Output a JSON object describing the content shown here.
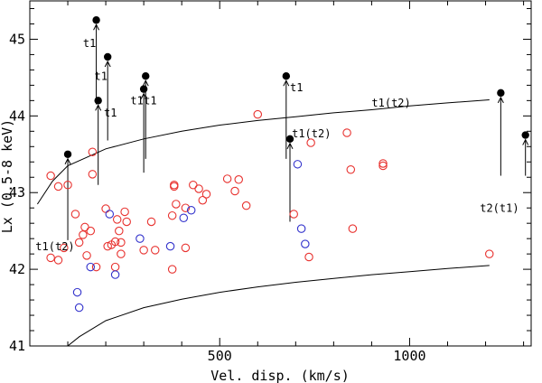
{
  "chart_data": {
    "type": "scatter",
    "title": "",
    "xlabel": "Vel. disp. (km/s)",
    "ylabel": "Lx (0.5-8 keV)",
    "xlim": [
      0,
      1320
    ],
    "ylim": [
      41,
      45.5
    ],
    "grid": false,
    "x_ticks": [
      500,
      1000
    ],
    "y_ticks": [
      41,
      42,
      43,
      44,
      45
    ],
    "colors": {
      "red": "#e8322f",
      "blue": "#3333cc",
      "black": "#000000"
    },
    "series": [
      {
        "name": "red-open-circles",
        "marker": "open-circle",
        "color": "#e8322f",
        "points": [
          [
            55,
            43.22
          ],
          [
            55,
            42.15
          ],
          [
            75,
            42.12
          ],
          [
            75,
            43.08
          ],
          [
            90,
            42.28
          ],
          [
            100,
            43.1
          ],
          [
            120,
            42.72
          ],
          [
            130,
            42.35
          ],
          [
            140,
            42.45
          ],
          [
            145,
            42.55
          ],
          [
            150,
            42.18
          ],
          [
            160,
            42.5
          ],
          [
            165,
            43.24
          ],
          [
            165,
            43.53
          ],
          [
            175,
            42.03
          ],
          [
            200,
            42.79
          ],
          [
            205,
            42.3
          ],
          [
            215,
            42.32
          ],
          [
            225,
            42.36
          ],
          [
            235,
            42.5
          ],
          [
            230,
            42.65
          ],
          [
            240,
            42.35
          ],
          [
            250,
            42.75
          ],
          [
            240,
            42.2
          ],
          [
            225,
            42.03
          ],
          [
            255,
            42.62
          ],
          [
            300,
            42.25
          ],
          [
            320,
            42.62
          ],
          [
            330,
            42.25
          ],
          [
            375,
            42.0
          ],
          [
            375,
            42.7
          ],
          [
            380,
            43.1
          ],
          [
            380,
            43.08
          ],
          [
            385,
            42.85
          ],
          [
            410,
            42.28
          ],
          [
            410,
            42.8
          ],
          [
            430,
            43.1
          ],
          [
            445,
            43.05
          ],
          [
            455,
            42.9
          ],
          [
            465,
            42.98
          ],
          [
            520,
            43.18
          ],
          [
            540,
            43.02
          ],
          [
            550,
            43.17
          ],
          [
            570,
            42.83
          ],
          [
            600,
            44.02
          ],
          [
            695,
            42.72
          ],
          [
            735,
            42.16
          ],
          [
            740,
            43.65
          ],
          [
            835,
            43.78
          ],
          [
            845,
            43.3
          ],
          [
            850,
            42.53
          ],
          [
            930,
            43.35
          ],
          [
            930,
            43.38
          ],
          [
            1210,
            42.2
          ]
        ]
      },
      {
        "name": "blue-open-circles",
        "marker": "open-circle",
        "color": "#3333cc",
        "points": [
          [
            125,
            41.7
          ],
          [
            130,
            41.5
          ],
          [
            160,
            42.03
          ],
          [
            210,
            42.72
          ],
          [
            225,
            41.93
          ],
          [
            290,
            42.4
          ],
          [
            370,
            42.3
          ],
          [
            405,
            42.67
          ],
          [
            425,
            42.77
          ],
          [
            705,
            43.37
          ],
          [
            715,
            42.53
          ],
          [
            725,
            42.33
          ]
        ]
      },
      {
        "name": "black-upper-limits",
        "marker": "filled-circle-with-arrow",
        "color": "#000000",
        "points": [
          {
            "x": 100,
            "y": 43.5,
            "label": "t1(t2)",
            "arrow_to": 42.38
          },
          {
            "x": 175,
            "y": 45.25,
            "label": "t1",
            "arrow_to": 44.15
          },
          {
            "x": 180,
            "y": 44.2,
            "label": "t1",
            "arrow_to": 43.1
          },
          {
            "x": 205,
            "y": 44.77,
            "label": "t1",
            "arrow_to": 43.68
          },
          {
            "x": 300,
            "y": 44.35,
            "label": "t1",
            "arrow_to": 43.26
          },
          {
            "x": 305,
            "y": 44.52,
            "label": "t1",
            "arrow_to": 43.44
          },
          {
            "x": 675,
            "y": 44.52,
            "label": "t1",
            "arrow_to": 43.44
          },
          {
            "x": 685,
            "y": 43.7,
            "label": "t1(t2)",
            "arrow_to": 42.62
          },
          {
            "x": 1240,
            "y": 44.3,
            "label": "t2(t1)",
            "arrow_to": 43.22
          },
          {
            "x": 1305,
            "y": 43.75,
            "label": "",
            "arrow_to": 43.22
          }
        ]
      }
    ],
    "curves": [
      {
        "name": "upper-curve",
        "label": "t1(t2)",
        "points": [
          [
            20,
            42.85
          ],
          [
            60,
            43.15
          ],
          [
            100,
            43.35
          ],
          [
            200,
            43.57
          ],
          [
            300,
            43.7
          ],
          [
            400,
            43.8
          ],
          [
            500,
            43.88
          ],
          [
            600,
            43.94
          ],
          [
            700,
            43.99
          ],
          [
            800,
            44.04
          ],
          [
            900,
            44.08
          ],
          [
            1000,
            44.13
          ],
          [
            1100,
            44.17
          ],
          [
            1210,
            44.21
          ]
        ]
      },
      {
        "name": "lower-curve",
        "points": [
          [
            100,
            41.0
          ],
          [
            130,
            41.12
          ],
          [
            200,
            41.33
          ],
          [
            300,
            41.5
          ],
          [
            400,
            41.61
          ],
          [
            500,
            41.7
          ],
          [
            600,
            41.77
          ],
          [
            700,
            41.83
          ],
          [
            800,
            41.88
          ],
          [
            900,
            41.93
          ],
          [
            1000,
            41.97
          ],
          [
            1100,
            42.01
          ],
          [
            1210,
            42.05
          ]
        ]
      }
    ],
    "annotations": [
      {
        "text": "t1",
        "x": 140,
        "y": 44.9
      },
      {
        "text": "t1",
        "x": 170,
        "y": 44.47
      },
      {
        "text": "t1",
        "x": 195,
        "y": 43.99
      },
      {
        "text": "t1",
        "x": 265,
        "y": 44.15
      },
      {
        "text": "t1",
        "x": 300,
        "y": 44.15
      },
      {
        "text": "t1",
        "x": 685,
        "y": 44.32
      },
      {
        "text": "t1(t2)",
        "x": 690,
        "y": 43.72
      },
      {
        "text": "t1(t2)",
        "x": 900,
        "y": 44.12
      },
      {
        "text": "t1(t2)",
        "x": 15,
        "y": 42.25
      },
      {
        "text": "t2(t1)",
        "x": 1185,
        "y": 42.75
      }
    ]
  }
}
